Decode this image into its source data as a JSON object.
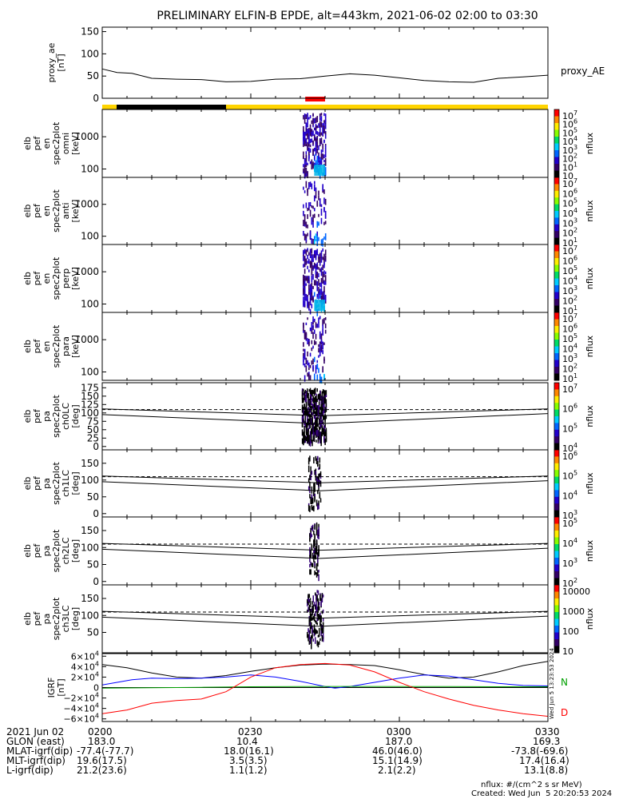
{
  "title": "PRELIMINARY ELFIN-B EPDE, alt=443km, 2021-06-02 02:00 to 03:30",
  "chart_data": {
    "type": "line",
    "time_range": [
      "02:00",
      "03:30"
    ],
    "bars": {
      "colors": {
        "black": "#000000",
        "yellow": "#ffd400",
        "red": "#ff0000"
      },
      "black_segment": [
        "02:00",
        "02:25"
      ],
      "yellow_segment": [
        "02:25",
        "03:30"
      ],
      "red_segment": [
        "02:41",
        "02:45"
      ]
    },
    "panels": [
      {
        "name": "proxy_ae",
        "ylabel": [
          "proxy_ae",
          "[nT]"
        ],
        "legend": "proxy_AE",
        "ylim": [
          0,
          160
        ],
        "yticks": [
          "150",
          "100",
          "50",
          "0"
        ],
        "series": [
          {
            "name": "proxy_AE",
            "x": [
              0,
              3,
              6,
              10,
              15,
              20,
              25,
              30,
              35,
              40,
              45,
              50,
              55,
              60,
              65,
              70,
              75,
              80,
              85,
              90
            ],
            "y": [
              66,
              58,
              56,
              45,
              43,
              42,
              37,
              38,
              43,
              44,
              50,
              55,
              52,
              46,
              40,
              37,
              36,
              45,
              48,
              52
            ]
          }
        ]
      },
      {
        "name": "omni",
        "ylabel": [
          "elb",
          "pef",
          "en",
          "spec2plot",
          "omni",
          "[keV]"
        ],
        "ylim": [
          55,
          7000
        ],
        "yscale": "log",
        "yticks": [
          "1000",
          "100"
        ],
        "colorbar": {
          "label": "nflux",
          "ticks": [
            "10",
            "10",
            "10",
            "10",
            "10",
            "10",
            "10",
            "10"
          ],
          "exps": [
            "7",
            "6",
            "5",
            "4",
            "3",
            "2",
            "1",
            ""
          ]
        }
      },
      {
        "name": "anti",
        "ylabel": [
          "elb",
          "pef",
          "en",
          "spec2plot",
          "anti",
          "[keV]"
        ],
        "ylim": [
          55,
          7000
        ],
        "yscale": "log",
        "yticks": [
          "1000",
          "100"
        ],
        "colorbar": {
          "label": "nflux",
          "ticks": [
            "10",
            "10",
            "10",
            "10",
            "10",
            "10",
            "10"
          ],
          "exps": [
            "7",
            "6",
            "5",
            "4",
            "3",
            "2",
            "1"
          ]
        }
      },
      {
        "name": "perp",
        "ylabel": [
          "elb",
          "pef",
          "en",
          "spec2plot",
          "perp",
          "[keV]"
        ],
        "ylim": [
          55,
          7000
        ],
        "yscale": "log",
        "yticks": [
          "1000",
          "100"
        ],
        "colorbar": {
          "label": "nflux",
          "ticks": [
            "10",
            "10",
            "10",
            "10",
            "10",
            "10",
            "10"
          ],
          "exps": [
            "7",
            "6",
            "5",
            "4",
            "3",
            "2",
            "1"
          ]
        }
      },
      {
        "name": "para",
        "ylabel": [
          "elb",
          "pef",
          "en",
          "spec2plot",
          "para",
          "[keV]"
        ],
        "ylim": [
          55,
          7000
        ],
        "yscale": "log",
        "yticks": [
          "1000",
          "100"
        ],
        "colorbar": {
          "label": "nflux",
          "ticks": [
            "10",
            "10",
            "10",
            "10",
            "10",
            "10",
            "10"
          ],
          "exps": [
            "7",
            "6",
            "5",
            "4",
            "3",
            "2",
            "1"
          ]
        }
      },
      {
        "name": "ch0LC",
        "ylabel": [
          "elb",
          "pef",
          "pa",
          "spec2plot",
          "ch0LC",
          "[deg]"
        ],
        "ylim": [
          -10,
          190
        ],
        "yticks": [
          "175",
          "150",
          "125",
          "100",
          "75",
          "50",
          "25",
          "0"
        ],
        "colorbar": {
          "label": "nflux",
          "ticks": [
            "10",
            "10",
            "10",
            "10"
          ],
          "exps": [
            "7",
            "6",
            "5",
            "4"
          ]
        }
      },
      {
        "name": "ch1LC",
        "ylabel": [
          "elb",
          "pef",
          "pa",
          "spec2plot",
          "ch1LC",
          "[deg]"
        ],
        "ylim": [
          -10,
          190
        ],
        "yticks": [
          "150",
          "100",
          "50",
          "0"
        ],
        "colorbar": {
          "label": "nflux",
          "ticks": [
            "10",
            "10",
            "10",
            "10"
          ],
          "exps": [
            "6",
            "5",
            "4",
            "3"
          ]
        }
      },
      {
        "name": "ch2LC",
        "ylabel": [
          "elb",
          "pef",
          "pa",
          "spec2plot",
          "ch2LC",
          "[deg]"
        ],
        "ylim": [
          -10,
          190
        ],
        "yticks": [
          "150",
          "100",
          "50",
          "0"
        ],
        "colorbar": {
          "label": "nflux",
          "ticks": [
            "10",
            "10",
            "10",
            "10"
          ],
          "exps": [
            "5",
            "4",
            "3",
            "2"
          ]
        }
      },
      {
        "name": "ch3LC",
        "ylabel": [
          "elb",
          "pef",
          "pa",
          "spec2plot",
          "ch3LC",
          "[deg]"
        ],
        "ylim": [
          -10,
          190
        ],
        "yticks": [
          "150",
          "100",
          "50"
        ],
        "colorbar": {
          "label": "nflux",
          "ticks": [
            "10000",
            "1000",
            "100",
            "10"
          ],
          "exps": [
            "",
            "",
            "",
            ""
          ]
        }
      },
      {
        "name": "IGRF",
        "ylabel": [
          "IGRF",
          "[nT]"
        ],
        "ylim": [
          -65000,
          65000
        ],
        "yticks": [
          {
            "m": "6",
            "e": "4",
            "v": 60000
          },
          {
            "m": "4",
            "e": "4",
            "v": 40000
          },
          {
            "m": "2",
            "e": "4",
            "v": 20000
          },
          {
            "m": "0",
            "e": "",
            "v": 0
          },
          {
            "m": "−2",
            "e": "4",
            "v": -20000
          },
          {
            "m": "−4",
            "e": "4",
            "v": -40000
          },
          {
            "m": "−6",
            "e": "4",
            "v": -60000
          }
        ],
        "legend": [
          "N",
          "D"
        ],
        "legend_colors": [
          "#00a000",
          "#ff0000"
        ],
        "series": [
          {
            "name": "black",
            "color": "#000000",
            "x": [
              0,
              5,
              10,
              15,
              20,
              25,
              30,
              35,
              40,
              45,
              50,
              55,
              60,
              65,
              70,
              75,
              80,
              85,
              90
            ],
            "y": [
              44000,
              38000,
              28000,
              20000,
              18000,
              23000,
              31000,
              38000,
              43000,
              45000,
              44000,
              42000,
              34000,
              25000,
              18000,
              20000,
              30000,
              42000,
              50000
            ]
          },
          {
            "name": "blue",
            "color": "#0000ff",
            "x": [
              0,
              3,
              6,
              10,
              15,
              20,
              25,
              30,
              35,
              40,
              45,
              47,
              50,
              55,
              60,
              65,
              70,
              75,
              80,
              85,
              90
            ],
            "y": [
              5000,
              10000,
              15000,
              18000,
              17000,
              18000,
              20000,
              24000,
              20000,
              12000,
              2000,
              -1000,
              2000,
              10000,
              18000,
              24000,
              22000,
              15000,
              8000,
              4000,
              3000
            ]
          },
          {
            "name": "green",
            "color": "#00a000",
            "x": [
              0,
              10,
              20,
              30,
              40,
              50,
              60,
              70,
              80,
              90
            ],
            "y": [
              -1000,
              -500,
              500,
              1500,
              2000,
              2200,
              2000,
              1800,
              1600,
              1500
            ]
          },
          {
            "name": "red",
            "color": "#ff0000",
            "x": [
              0,
              5,
              10,
              15,
              20,
              25,
              30,
              35,
              40,
              45,
              50,
              55,
              60,
              65,
              70,
              75,
              80,
              85,
              90
            ],
            "y": [
              -50000,
              -43000,
              -30000,
              -25000,
              -22000,
              -8000,
              20000,
              38000,
              44000,
              46000,
              43000,
              30000,
              10000,
              -8000,
              -22000,
              -34000,
              -43000,
              -50000,
              -55000
            ]
          }
        ]
      }
    ],
    "timestamp_vertical": "Wed Jun  5 13:23:53 2024"
  },
  "footer": {
    "rows": [
      {
        "label": "2021 Jun 02",
        "values": [
          "0200",
          "0230",
          "0300",
          "0330"
        ]
      },
      {
        "label": "GLON (east)",
        "values": [
          "183.0",
          "10.4",
          "187.0",
          "169.3"
        ]
      },
      {
        "label": "MLAT-igrf(dip)",
        "values": [
          "-77.4(-77.7)",
          "18.0(16.1)",
          "46.0(46.0)",
          "-73.8(-69.6)"
        ]
      },
      {
        "label": "MLT-igrf(dip)",
        "values": [
          "19.6(17.5)",
          "3.5(3.5)",
          "15.1(14.9)",
          "17.4(16.4)"
        ]
      },
      {
        "label": "L-igrf(dip)",
        "values": [
          "21.2(23.6)",
          "1.1(1.2)",
          "2.1(2.2)",
          "13.1(8.8)"
        ]
      }
    ],
    "nflux_unit": "nflux: #/(cm^2 s sr MeV)",
    "created": "Created: Wed Jun  5 20:20:53 2024"
  }
}
